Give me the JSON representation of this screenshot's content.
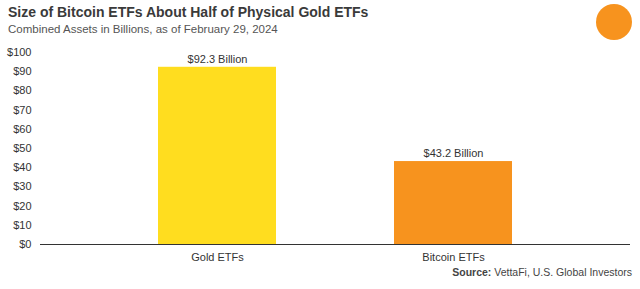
{
  "chart_data": {
    "type": "bar",
    "title": "Size of Bitcoin ETFs About Half of Physical Gold ETFs",
    "subtitle": "Combined Assets in Billions, as of February 29, 2024",
    "source": "Source: VettaFi, U.S. Global Investors",
    "categories": [
      "Gold ETFs",
      "Bitcoin ETFs"
    ],
    "values": [
      92.3,
      43.2
    ],
    "value_labels": [
      "$92.3 Billion",
      "$43.2 Billion"
    ],
    "colors": [
      "#FFDD1F",
      "#F7931E"
    ],
    "ylim": [
      0,
      100
    ],
    "yticks": [
      {
        "value": 0,
        "label": "$0"
      },
      {
        "value": 10,
        "label": "$10"
      },
      {
        "value": 20,
        "label": "$20"
      },
      {
        "value": 30,
        "label": "$30"
      },
      {
        "value": 40,
        "label": "$40"
      },
      {
        "value": 50,
        "label": "$50"
      },
      {
        "value": 60,
        "label": "$60"
      },
      {
        "value": 70,
        "label": "$70"
      },
      {
        "value": 80,
        "label": "$80"
      },
      {
        "value": 90,
        "label": "$90"
      },
      {
        "value": 100,
        "label": "$100"
      }
    ],
    "grid": false,
    "data_labels": true
  }
}
